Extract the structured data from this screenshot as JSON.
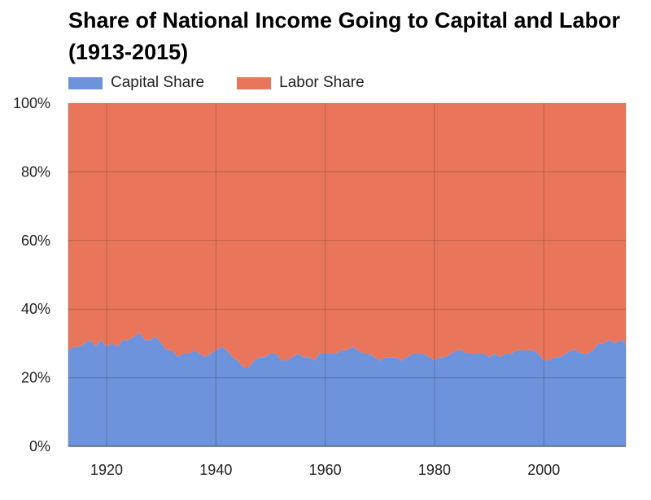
{
  "chart_data": {
    "type": "area",
    "stacked": true,
    "title": "Share of National Income Going to Capital and Labor (1913-2015)",
    "xlabel": "",
    "ylabel": "",
    "xlim": [
      1913,
      2015
    ],
    "ylim": [
      0,
      100
    ],
    "grid": true,
    "legend_position": "top-left",
    "x_ticks": [
      "1920",
      "1940",
      "1960",
      "1980",
      "2000"
    ],
    "x_tick_values": [
      1920,
      1940,
      1960,
      1980,
      2000
    ],
    "y_ticks": [
      "0%",
      "20%",
      "40%",
      "60%",
      "80%",
      "100%"
    ],
    "y_tick_values": [
      0,
      20,
      40,
      60,
      80,
      100
    ],
    "x": [
      1913,
      1914,
      1915,
      1916,
      1917,
      1918,
      1919,
      1920,
      1921,
      1922,
      1923,
      1924,
      1925,
      1926,
      1927,
      1928,
      1929,
      1930,
      1931,
      1932,
      1933,
      1934,
      1935,
      1936,
      1937,
      1938,
      1939,
      1940,
      1941,
      1942,
      1943,
      1944,
      1945,
      1946,
      1947,
      1948,
      1949,
      1950,
      1951,
      1952,
      1953,
      1954,
      1955,
      1956,
      1957,
      1958,
      1959,
      1960,
      1961,
      1962,
      1963,
      1964,
      1965,
      1966,
      1967,
      1968,
      1969,
      1970,
      1971,
      1972,
      1973,
      1974,
      1975,
      1976,
      1977,
      1978,
      1979,
      1980,
      1981,
      1982,
      1983,
      1984,
      1985,
      1986,
      1987,
      1988,
      1989,
      1990,
      1991,
      1992,
      1993,
      1994,
      1995,
      1996,
      1997,
      1998,
      1999,
      2000,
      2001,
      2002,
      2003,
      2004,
      2005,
      2006,
      2007,
      2008,
      2009,
      2010,
      2011,
      2012,
      2013,
      2014,
      2015
    ],
    "series": [
      {
        "name": "Capital Share",
        "color": "#6d93dc",
        "values": [
          28,
          29,
          29,
          30,
          31,
          29,
          31,
          29,
          30,
          29,
          31,
          31,
          32,
          33,
          31,
          31,
          32,
          30,
          28,
          28,
          26,
          27,
          27,
          28,
          27,
          26,
          27,
          28,
          29,
          28,
          26,
          25,
          23,
          23,
          25,
          26,
          26,
          27,
          27,
          25,
          25,
          26,
          27,
          26,
          26,
          25,
          27,
          27,
          27,
          27,
          28,
          28,
          29,
          28,
          27,
          27,
          26,
          25,
          26,
          26,
          26,
          25,
          26,
          27,
          27,
          27,
          26,
          25,
          26,
          26,
          27,
          28,
          28,
          27,
          27,
          27,
          27,
          26,
          27,
          26,
          27,
          27,
          28,
          28,
          28,
          28,
          27,
          25,
          25,
          26,
          26,
          27,
          28,
          28,
          27,
          27,
          28,
          30,
          30,
          31,
          30,
          31,
          30
        ]
      },
      {
        "name": "Labor Share",
        "color": "#e9765a",
        "values": [
          72,
          71,
          71,
          70,
          69,
          71,
          69,
          71,
          70,
          71,
          69,
          69,
          68,
          67,
          69,
          69,
          68,
          70,
          72,
          72,
          74,
          73,
          73,
          72,
          73,
          74,
          73,
          72,
          71,
          72,
          74,
          75,
          77,
          77,
          75,
          74,
          74,
          73,
          73,
          75,
          75,
          74,
          73,
          74,
          74,
          75,
          73,
          73,
          73,
          73,
          72,
          72,
          71,
          72,
          73,
          73,
          74,
          75,
          74,
          74,
          74,
          75,
          74,
          73,
          73,
          73,
          74,
          75,
          74,
          74,
          73,
          72,
          72,
          73,
          73,
          73,
          73,
          74,
          73,
          74,
          73,
          73,
          72,
          72,
          72,
          72,
          73,
          75,
          75,
          74,
          74,
          73,
          72,
          72,
          73,
          73,
          72,
          70,
          70,
          69,
          70,
          69,
          70
        ]
      }
    ]
  }
}
